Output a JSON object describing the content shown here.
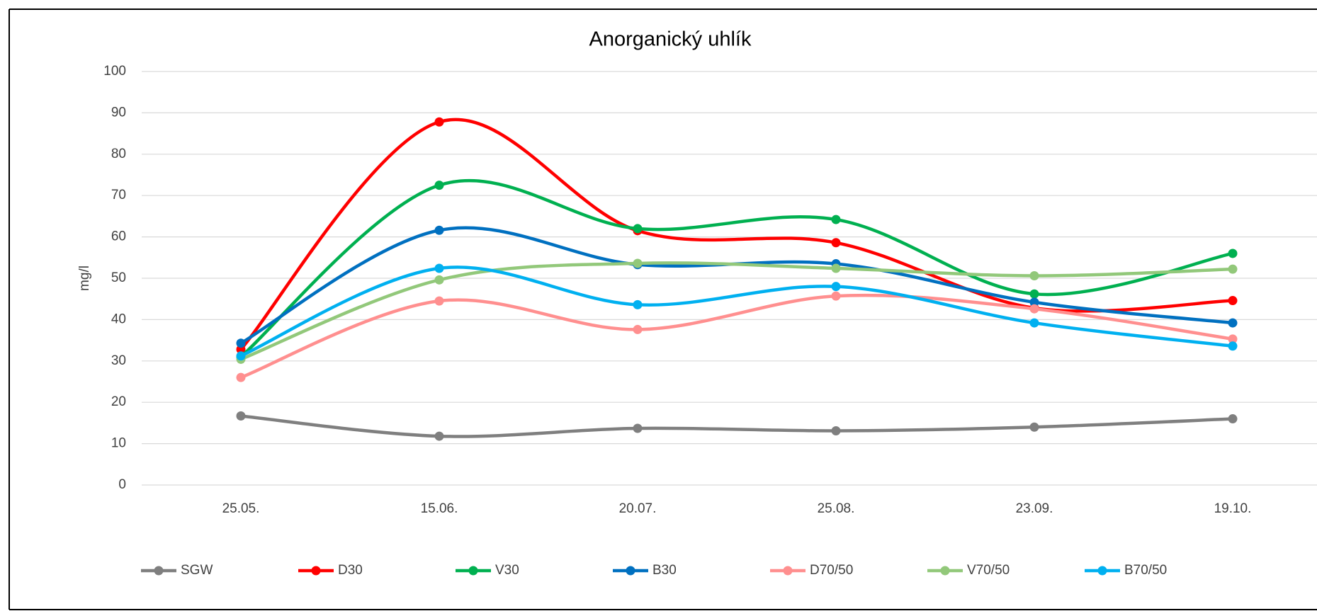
{
  "chart_data": {
    "type": "line",
    "title": "Anorganický uhlík",
    "y_label": "mg/l",
    "categories": [
      "25.05.",
      "15.06.",
      "20.07.",
      "25.08.",
      "23.09.",
      "19.10."
    ],
    "ylim": [
      0,
      100
    ],
    "yticks": [
      0,
      10,
      20,
      30,
      40,
      50,
      60,
      70,
      80,
      90,
      100
    ],
    "grid": true,
    "smooth": true,
    "legend": "bottom",
    "series": [
      {
        "name": "SGW",
        "color": "#7f7f7f",
        "values": [
          16.7,
          11.8,
          13.7,
          13.1,
          14.0,
          16.0
        ]
      },
      {
        "name": "D30",
        "color": "#ff0000",
        "values": [
          32.8,
          87.8,
          61.5,
          58.6,
          42.8,
          44.6
        ]
      },
      {
        "name": "V30",
        "color": "#00b050",
        "values": [
          31.0,
          72.5,
          62.0,
          64.2,
          46.2,
          56.0
        ]
      },
      {
        "name": "B30",
        "color": "#0070c0",
        "values": [
          34.3,
          61.6,
          53.3,
          53.5,
          44.2,
          39.2
        ]
      },
      {
        "name": "D70/50",
        "color": "#ff8f8f",
        "values": [
          26.0,
          44.5,
          37.6,
          45.7,
          42.6,
          35.3
        ]
      },
      {
        "name": "V70/50",
        "color": "#92c87a",
        "values": [
          30.4,
          49.6,
          53.6,
          52.4,
          50.6,
          52.2
        ]
      },
      {
        "name": "B70/50",
        "color": "#00b0f0",
        "values": [
          31.2,
          52.4,
          43.6,
          48.0,
          39.2,
          33.6
        ]
      }
    ]
  }
}
